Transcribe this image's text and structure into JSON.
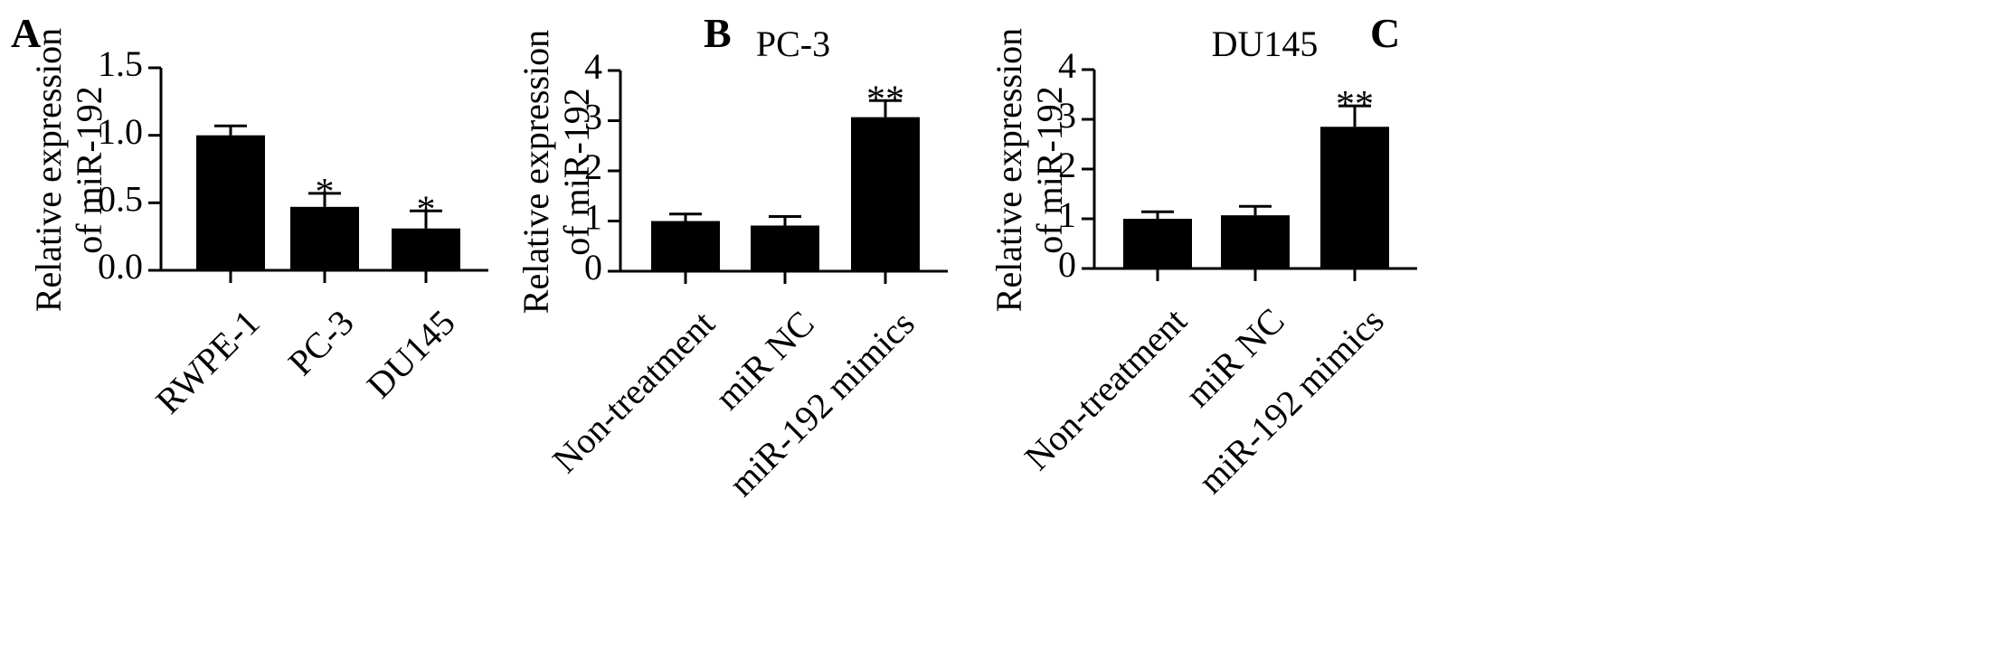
{
  "figure": {
    "panels": [
      {
        "letter": "A"
      },
      {
        "letter": "B"
      },
      {
        "letter": "C"
      }
    ]
  },
  "chart_data": [
    {
      "type": "bar",
      "panel": "A",
      "title": "",
      "xlabel": "",
      "ylabel": [
        "Relative expression",
        "of miR-192"
      ],
      "categories": [
        "RWPE-1",
        "PC-3",
        "DU145"
      ],
      "values": [
        1.0,
        0.47,
        0.31
      ],
      "errors": [
        0.07,
        0.1,
        0.13
      ],
      "significance": [
        "",
        "*",
        "*"
      ],
      "ylim": [
        0,
        1.5
      ],
      "yticks": [
        0.0,
        0.5,
        1.0,
        1.5
      ],
      "ytick_labels": [
        "0.0",
        "0.5",
        "1.0",
        "1.5"
      ],
      "bar_color": "#000000",
      "grid": false,
      "legend": "none"
    },
    {
      "type": "bar",
      "panel": "B",
      "title": "PC-3",
      "xlabel": "",
      "ylabel": [
        "Relative expression",
        "of miR-192"
      ],
      "categories": [
        "Non-treatment",
        "miR NC",
        "miR-192 mimics"
      ],
      "values": [
        1.0,
        0.91,
        3.07
      ],
      "errors": [
        0.14,
        0.18,
        0.33
      ],
      "significance": [
        "",
        "",
        "**"
      ],
      "ylim": [
        0,
        4
      ],
      "yticks": [
        0,
        1,
        2,
        3,
        4
      ],
      "ytick_labels": [
        "0",
        "1",
        "2",
        "3",
        "4"
      ],
      "bar_color": "#000000",
      "grid": false,
      "legend": "none"
    },
    {
      "type": "bar",
      "panel": "C",
      "title": "DU145",
      "xlabel": "",
      "ylabel": [
        "Relative expression",
        "of miR-192"
      ],
      "categories": [
        "Non-treatment",
        "miR NC",
        "miR-192 mimics"
      ],
      "values": [
        1.0,
        1.07,
        2.85
      ],
      "errors": [
        0.14,
        0.18,
        0.42
      ],
      "significance": [
        "",
        "",
        "**"
      ],
      "ylim": [
        0,
        4
      ],
      "yticks": [
        0,
        1,
        2,
        3,
        4
      ],
      "ytick_labels": [
        "0",
        "1",
        "2",
        "3",
        "4"
      ],
      "bar_color": "#000000",
      "grid": false,
      "legend": "none"
    }
  ]
}
